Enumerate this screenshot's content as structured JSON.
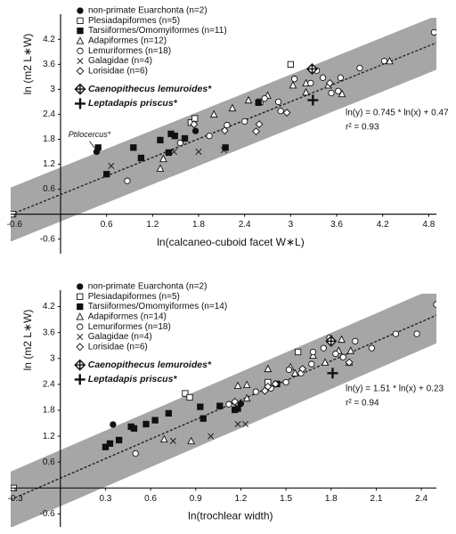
{
  "chart_data": [
    {
      "type": "scatter",
      "x_label": "ln(calcaneo-cuboid facet W∗L)",
      "y_label": "ln (m2 L∗W)",
      "xlim": [
        -0.65,
        4.9
      ],
      "ylim": [
        -0.95,
        4.72
      ],
      "xticks": [
        -0.6,
        0.6,
        1.2,
        1.8,
        2.4,
        3.0,
        3.6,
        4.2,
        4.8
      ],
      "yticks": [
        -0.6,
        0.6,
        1.2,
        1.8,
        2.4,
        3.0,
        3.6,
        4.2
      ],
      "equation": "ln(y) = 0.745 * ln(x) + 0.47",
      "r_squared": "r² = 0.93",
      "annotation": "Ptilocercus*",
      "fit": {
        "x": [
          -0.65,
          4.9
        ],
        "y": [
          -0.014,
          4.12
        ]
      },
      "band": {
        "x": [
          -0.65,
          4.9
        ],
        "upper": [
          0.64,
          4.77
        ],
        "lower": [
          -0.66,
          3.47
        ],
        "color": "#a6a6a6"
      },
      "series": [
        {
          "name": "non-primate Euarchonta (n=2)",
          "marker": "circle-filled",
          "x": [
            0.47,
            1.76
          ],
          "y": [
            1.5,
            2.0
          ]
        },
        {
          "name": "Plesiadapiformes (n=5)",
          "marker": "square-open",
          "x": [
            -0.62,
            1.7,
            1.75,
            2.6,
            3.0
          ],
          "y": [
            0.0,
            2.2,
            2.3,
            2.7,
            3.6
          ]
        },
        {
          "name": "Tarsiiformes/Omomyiformes (n=11)",
          "marker": "square-filled",
          "x": [
            0.49,
            0.6,
            0.95,
            1.3,
            1.44,
            1.49,
            1.41,
            1.62,
            2.15,
            2.58,
            1.05
          ],
          "y": [
            1.6,
            0.96,
            1.6,
            1.78,
            1.93,
            1.88,
            1.48,
            1.82,
            1.6,
            2.68,
            1.35
          ]
        },
        {
          "name": "Adapiformes (n=12)",
          "marker": "triangle-open",
          "x": [
            1.3,
            1.34,
            2.0,
            2.24,
            2.45,
            2.7,
            3.03,
            3.2,
            3.2,
            3.49,
            3.67,
            4.29
          ],
          "y": [
            1.1,
            1.33,
            2.4,
            2.55,
            2.74,
            2.85,
            3.1,
            3.15,
            2.93,
            3.1,
            2.89,
            3.68
          ]
        },
        {
          "name": "Lemuriformes (n=18)",
          "marker": "circle-open",
          "x": [
            0.87,
            1.56,
            1.94,
            2.17,
            2.4,
            2.66,
            2.84,
            2.87,
            3.05,
            3.26,
            3.34,
            3.42,
            3.53,
            3.62,
            3.65,
            3.9,
            4.22,
            4.87
          ],
          "y": [
            0.8,
            1.71,
            1.88,
            2.14,
            2.23,
            2.78,
            2.7,
            2.48,
            3.25,
            3.15,
            3.45,
            3.28,
            2.91,
            2.96,
            3.28,
            3.51,
            3.68,
            4.37
          ]
        },
        {
          "name": "Galagidae (n=4)",
          "marker": "cross",
          "x": [
            0.66,
            1.48,
            1.8,
            2.13
          ],
          "y": [
            1.16,
            1.5,
            1.5,
            1.54
          ]
        },
        {
          "name": "Lorisidae (n=6)",
          "marker": "diamond-open",
          "x": [
            1.74,
            2.14,
            2.55,
            2.59,
            2.95,
            3.51
          ],
          "y": [
            2.16,
            2.01,
            1.99,
            2.16,
            2.44,
            3.15
          ]
        },
        {
          "name": "Caenopithecus lemuroides*",
          "marker": "crossed-diamond",
          "x": [
            3.28
          ],
          "y": [
            3.49
          ]
        },
        {
          "name": "Leptadapis priscus*",
          "marker": "plus",
          "x": [
            3.29
          ],
          "y": [
            2.74
          ]
        }
      ]
    },
    {
      "type": "scatter",
      "x_label": "ln(trochlear width)",
      "y_label": "ln (m2 L∗W)",
      "xlim": [
        -0.33,
        2.5
      ],
      "ylim": [
        -0.9,
        4.5
      ],
      "xticks": [
        -0.3,
        0.3,
        0.6,
        0.9,
        1.2,
        1.5,
        1.8,
        2.1,
        2.4
      ],
      "yticks": [
        -0.6,
        0.6,
        1.2,
        1.8,
        2.4,
        3.0,
        3.6,
        4.2
      ],
      "equation": "ln(y) = 1.51 * ln(x) + 0.23",
      "r_squared": "r² = 0.94",
      "fit": {
        "x": [
          -0.33,
          2.5
        ],
        "y": [
          -0.27,
          4.0
        ]
      },
      "band": {
        "x": [
          -0.33,
          2.5
        ],
        "upper": [
          0.38,
          4.65
        ],
        "lower": [
          -0.92,
          3.35
        ],
        "color": "#a6a6a6"
      },
      "series": [
        {
          "name": "non-primate Euarchonta (n=2)",
          "marker": "circle-filled",
          "x": [
            0.35,
            1.2
          ],
          "y": [
            1.47,
            1.95
          ]
        },
        {
          "name": "Plesiadapiformes (n=5)",
          "marker": "square-open",
          "x": [
            -0.31,
            0.83,
            0.86,
            1.38,
            1.58
          ],
          "y": [
            0.0,
            2.19,
            2.1,
            2.45,
            3.15
          ]
        },
        {
          "name": "Tarsiiformes/Omomyiformes (n=14)",
          "marker": "square-filled",
          "x": [
            0.3,
            0.33,
            0.39,
            0.47,
            0.49,
            0.57,
            0.63,
            0.72,
            0.93,
            0.95,
            1.06,
            1.16,
            1.18,
            1.44
          ],
          "y": [
            0.95,
            1.03,
            1.11,
            1.42,
            1.38,
            1.48,
            1.57,
            1.73,
            1.88,
            1.61,
            1.9,
            1.81,
            1.84,
            2.41
          ]
        },
        {
          "name": "Adapiformes (n=14)",
          "marker": "triangle-open",
          "x": [
            0.69,
            0.87,
            1.18,
            1.24,
            1.38,
            1.53,
            1.56,
            1.68,
            1.76,
            1.85,
            1.87,
            1.93,
            1.92,
            1.24
          ],
          "y": [
            1.13,
            1.09,
            2.37,
            2.39,
            2.76,
            2.8,
            2.66,
            3.07,
            2.91,
            3.18,
            3.44,
            3.18,
            2.91,
            2.08
          ]
        },
        {
          "name": "Lemuriformes (n=18)",
          "marker": "circle-open",
          "x": [
            0.5,
            1.12,
            1.3,
            1.4,
            1.5,
            1.52,
            1.6,
            1.67,
            1.68,
            1.75,
            1.79,
            1.83,
            1.88,
            1.96,
            2.07,
            2.23,
            2.37,
            2.5
          ],
          "y": [
            0.8,
            1.94,
            2.23,
            2.31,
            2.45,
            2.74,
            2.66,
            2.87,
            3.15,
            3.24,
            3.48,
            3.11,
            3.03,
            3.4,
            3.24,
            3.57,
            3.57,
            4.25
          ]
        },
        {
          "name": "Galagidae (n=4)",
          "marker": "cross",
          "x": [
            0.75,
            1.18,
            1.23,
            1.0
          ],
          "y": [
            1.09,
            1.48,
            1.48,
            1.2
          ]
        },
        {
          "name": "Lorisidae (n=6)",
          "marker": "diamond-open",
          "x": [
            1.16,
            1.36,
            1.38,
            1.43,
            1.61,
            1.92
          ],
          "y": [
            2.0,
            2.25,
            2.35,
            2.41,
            2.76,
            2.91
          ]
        },
        {
          "name": "Caenopithecus lemuroides*",
          "marker": "crossed-diamond",
          "x": [
            1.8
          ],
          "y": [
            3.4
          ]
        },
        {
          "name": "Leptadapis priscus*",
          "marker": "plus",
          "x": [
            1.81
          ],
          "y": [
            2.66
          ]
        }
      ]
    }
  ]
}
